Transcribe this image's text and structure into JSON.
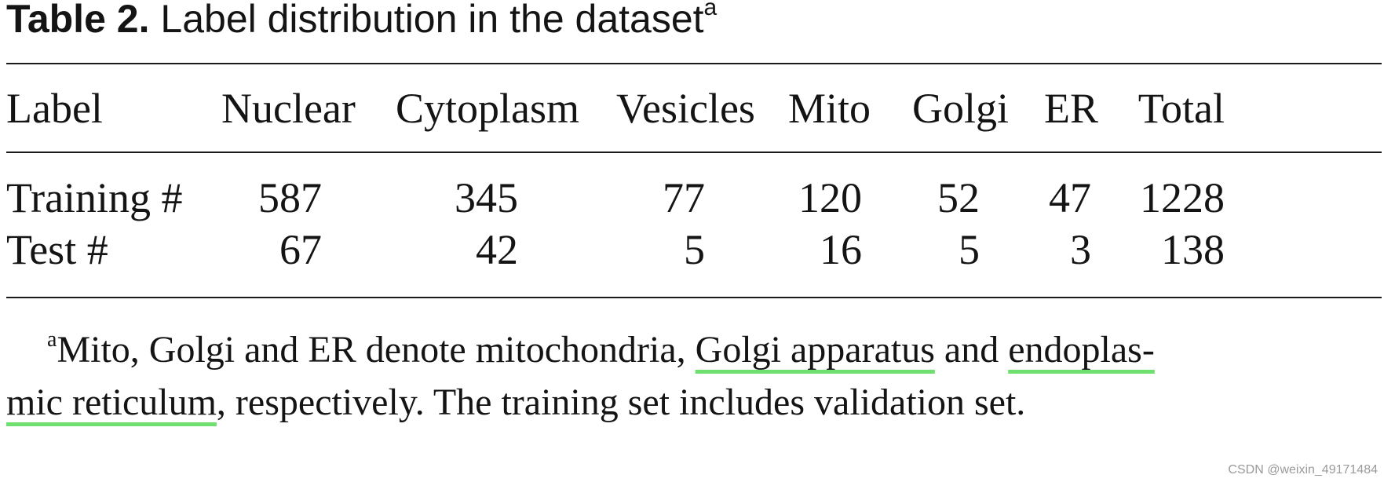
{
  "caption": {
    "number": "Table 2.",
    "title": "Label distribution in the dataset",
    "marker": "a"
  },
  "table": {
    "headers": [
      "Label",
      "Nuclear",
      "Cytoplasm",
      "Vesicles",
      "Mito",
      "Golgi",
      "ER",
      "Total"
    ],
    "rows": [
      {
        "label": "Training #",
        "values": [
          "587",
          "345",
          "77",
          "120",
          "52",
          "47",
          "1228"
        ]
      },
      {
        "label": "Test #",
        "values": [
          "67",
          "42",
          "5",
          "16",
          "5",
          "3",
          "138"
        ]
      }
    ]
  },
  "footnote": {
    "marker": "a",
    "line1_a": "Mito, Golgi and ER denote mitochondria, ",
    "term1": "Golgi apparatus",
    "line1_b": " and ",
    "term2_part1": "endoplas-",
    "term2_part2": "mic reticulum",
    "line2_b": ", respectively. The training set includes validation set."
  },
  "watermark": "CSDN @weixin_49171484",
  "colors": {
    "highlight_underline": "#6fe070",
    "text": "#141414",
    "watermark": "#9a9a9a"
  }
}
